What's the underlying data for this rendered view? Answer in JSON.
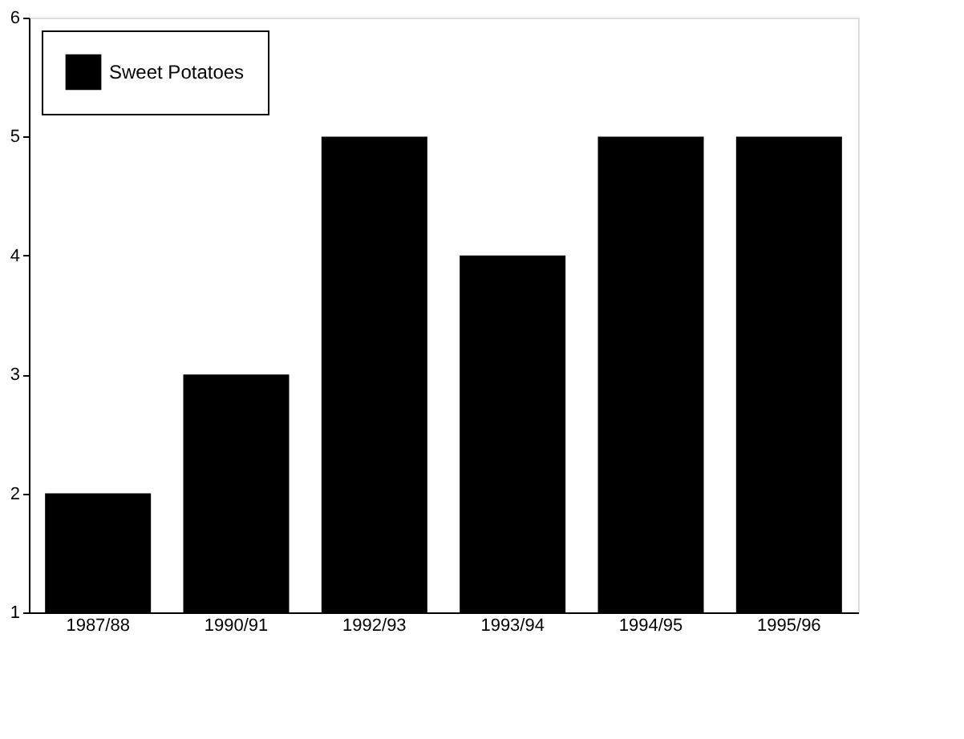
{
  "chart_data": {
    "type": "bar",
    "categories": [
      "1987/88",
      "1990/91",
      "1992/93",
      "1993/94",
      "1994/95",
      "1995/96"
    ],
    "series": [
      {
        "name": "Sweet Potatoes",
        "color": "#000000",
        "values": [
          2,
          3,
          5,
          4,
          5,
          5
        ]
      }
    ],
    "ylim": [
      1,
      6
    ],
    "yticks": [
      1,
      2,
      3,
      4,
      5,
      6
    ],
    "grid": false,
    "legend": "top left"
  }
}
